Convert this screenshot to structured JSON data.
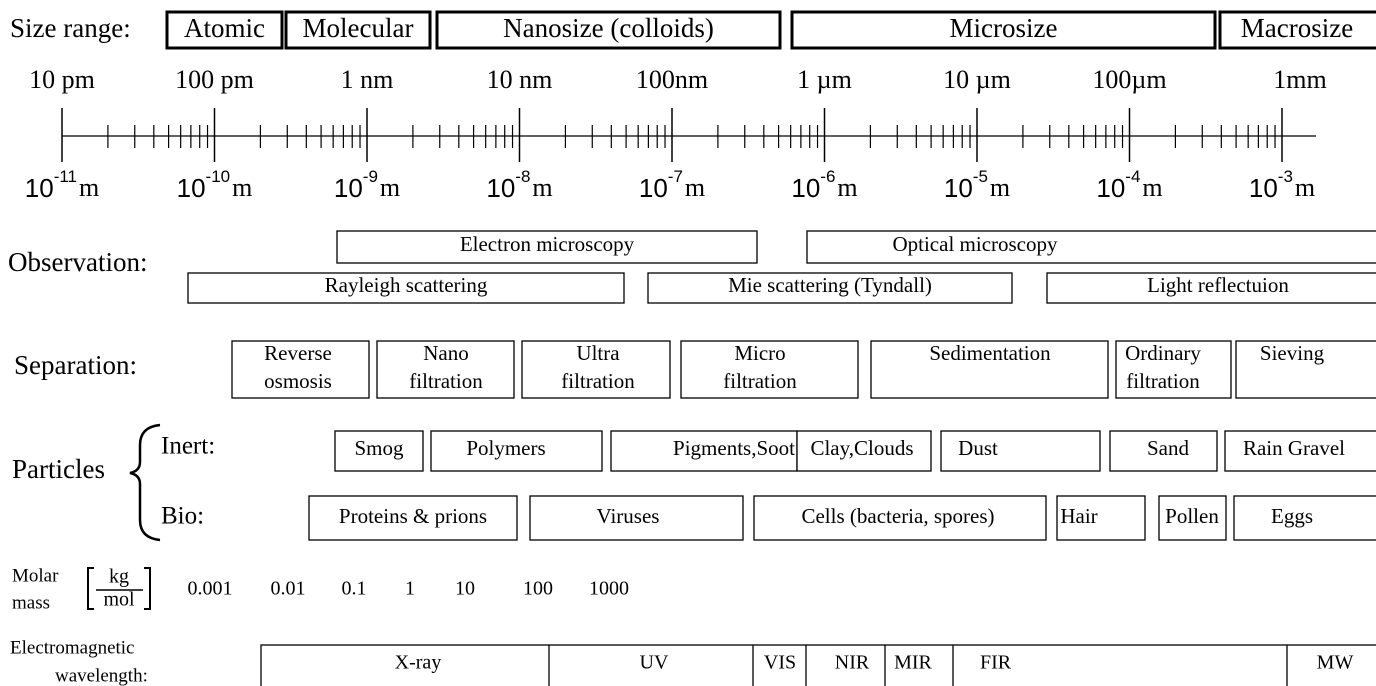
{
  "size_range": {
    "label": "Size range:",
    "ranges": [
      "Atomic",
      "Molecular",
      "Nanosize (colloids)",
      "Microsize",
      "Macrosize"
    ]
  },
  "scale": {
    "top_labels": [
      "10 pm",
      "100 pm",
      "1 nm",
      "10 nm",
      "100nm",
      "1 µm",
      "10 µm",
      "100µm",
      "1mm"
    ],
    "bottom_labels": [
      {
        "base": "10",
        "exp": "-11",
        "unit": "m"
      },
      {
        "base": "10",
        "exp": "-10",
        "unit": "m"
      },
      {
        "base": "10",
        "exp": "-9",
        "unit": "m"
      },
      {
        "base": "10",
        "exp": "-8",
        "unit": "m"
      },
      {
        "base": "10",
        "exp": "-7",
        "unit": "m"
      },
      {
        "base": "10",
        "exp": "-6",
        "unit": "m"
      },
      {
        "base": "10",
        "exp": "-5",
        "unit": "m"
      },
      {
        "base": "10",
        "exp": "-4",
        "unit": "m"
      },
      {
        "base": "10",
        "exp": "-3",
        "unit": "m"
      }
    ]
  },
  "observation": {
    "label": "Observation:",
    "top_boxes": [
      "Electron microscopy",
      "Optical microscopy"
    ],
    "bottom_boxes": [
      "Rayleigh scattering",
      "Mie scattering (Tyndall)",
      "Light reflectuion"
    ]
  },
  "separation": {
    "label": "Separation:",
    "boxes": [
      [
        "Reverse",
        "osmosis"
      ],
      [
        "Nano",
        "filtration"
      ],
      [
        "Ultra",
        "filtration"
      ],
      [
        "Micro",
        "filtration"
      ],
      [
        "Sedimentation"
      ],
      [
        "Ordinary",
        "filtration"
      ],
      [
        "Sieving"
      ]
    ]
  },
  "particles": {
    "label": "Particles",
    "inert": {
      "label": "Inert:",
      "boxes": [
        "Smog",
        "Polymers",
        "Pigments,Soot",
        "Clay,Clouds",
        "Dust",
        "Sand",
        "Rain Gravel"
      ]
    },
    "bio": {
      "label": "Bio:",
      "boxes": [
        "Proteins & prions",
        "Viruses",
        "Cells (bacteria, spores)",
        "Hair",
        "Pollen",
        "Eggs"
      ]
    }
  },
  "molar_mass": {
    "label": [
      "Molar",
      "mass"
    ],
    "unit_numerator": "kg",
    "unit_denominator": "mol",
    "values": [
      "0.001",
      "0.01",
      "0.1",
      "1",
      "10",
      "100",
      "1000"
    ]
  },
  "electromagnetic": {
    "label": [
      "Electromagnetic",
      "wavelength:"
    ],
    "bands": [
      "X-ray",
      "UV",
      "VIS",
      "NIR",
      "MIR",
      "FIR",
      "MW"
    ]
  }
}
